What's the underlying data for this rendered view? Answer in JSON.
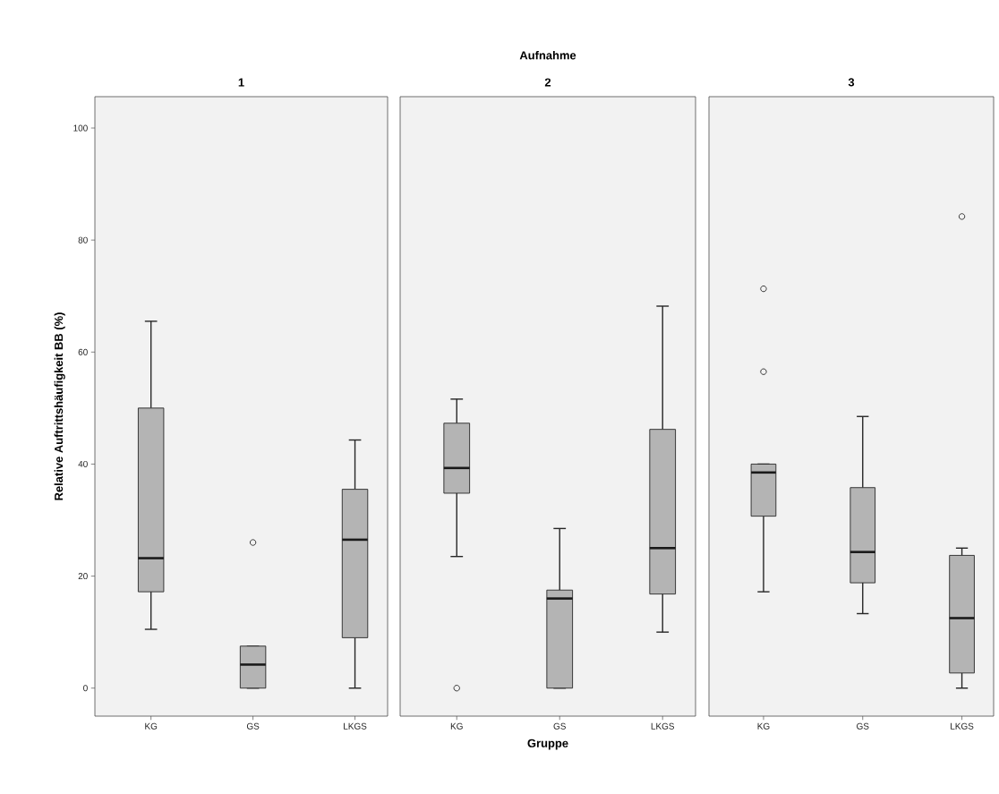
{
  "chart_data": [
    {
      "type": "box",
      "title": "1",
      "ylabel": "Relative Auftrittshäufigkeit BB (%)",
      "categories": [
        "KG",
        "GS",
        "LKGS"
      ],
      "color": "#b4b4b4",
      "ylim": [
        -5,
        105.6
      ],
      "yticks": [
        0,
        20,
        40,
        60,
        80,
        100
      ],
      "grid": false,
      "boxes": [
        {
          "low": 10.5,
          "q1": 17.2,
          "median": 23.2,
          "q3": 50,
          "high": 65.5
        },
        {
          "low": 0,
          "q1": 0,
          "median": 4.2,
          "q3": 7.5,
          "high": 7.5,
          "outliers": [
            26
          ]
        },
        {
          "low": 0,
          "q1": 9,
          "median": 26.5,
          "q3": 35.5,
          "high": 44.3
        }
      ]
    },
    {
      "type": "box",
      "title": "2",
      "xlabel": "Gruppe",
      "annotations": [
        "Aufnahme"
      ],
      "categories": [
        "KG",
        "GS",
        "LKGS"
      ],
      "color": "#b4b4b4",
      "ylim": [
        -5,
        105.6
      ],
      "tick_labels": "x",
      "grid": false,
      "boxes": [
        {
          "low": 23.5,
          "q1": 34.8,
          "median": 39.3,
          "q3": 47.3,
          "high": 51.6,
          "outliers": [
            0
          ]
        },
        {
          "low": 0,
          "q1": 0,
          "median": 16,
          "q3": 17.5,
          "high": 28.5
        },
        {
          "low": 10,
          "q1": 16.8,
          "median": 25,
          "q3": 46.2,
          "high": 68.2
        }
      ]
    },
    {
      "type": "box",
      "title": "3",
      "categories": [
        "KG",
        "GS",
        "LKGS"
      ],
      "color": "#b4b4b4",
      "ylim": [
        -5,
        105.6
      ],
      "tick_labels": "x",
      "grid": false,
      "boxes": [
        {
          "low": 17.2,
          "q1": 30.7,
          "median": 38.5,
          "q3": 40,
          "high": 40,
          "outliers": [
            56.5,
            71.3
          ]
        },
        {
          "low": 13.3,
          "q1": 18.8,
          "median": 24.3,
          "q3": 35.8,
          "high": 48.5
        },
        {
          "low": 0,
          "q1": 2.7,
          "median": 12.5,
          "q3": 23.7,
          "high": 25,
          "outliers": [
            84.2
          ]
        }
      ]
    }
  ]
}
